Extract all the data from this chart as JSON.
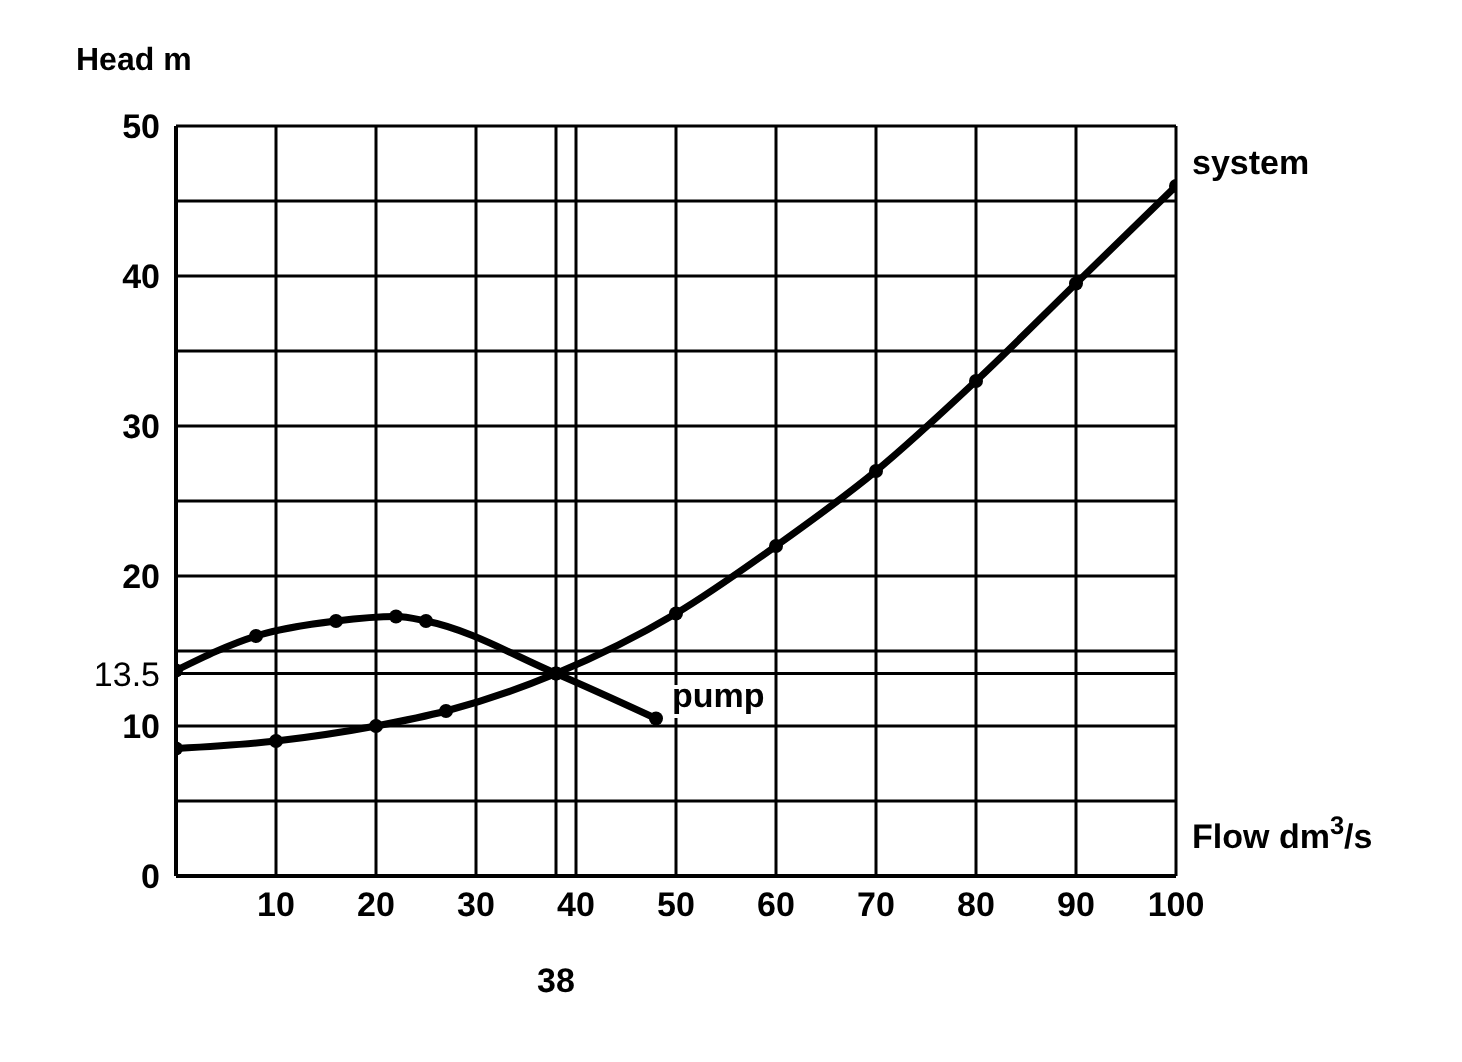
{
  "chart_data": {
    "type": "line",
    "xlabel": "Flow dm$^{3}$/s",
    "ylabel": "Head m",
    "series": [
      {
        "name": "system",
        "color": "#000000",
        "x": [
          0,
          10,
          20,
          27,
          38,
          50,
          60,
          70,
          80,
          90,
          100
        ],
        "values": [
          8.5,
          9,
          10,
          11,
          13.5,
          17.5,
          22,
          27,
          33,
          39.5,
          46
        ]
      },
      {
        "name": "pump",
        "color": "#000000",
        "x": [
          0,
          8,
          16,
          22,
          25,
          38,
          48
        ],
        "values": [
          13.7,
          16,
          17,
          17.3,
          17,
          13.5,
          10.5
        ]
      }
    ],
    "xlim": [
      0,
      100
    ],
    "ylim": [
      0,
      50
    ],
    "xticks": [
      {
        "value": 0,
        "label": null
      },
      10,
      20,
      30,
      40,
      50,
      60,
      70,
      80,
      90,
      100
    ],
    "yticks": [
      0,
      {
        "value": 5,
        "label": null
      },
      10,
      {
        "value": 15,
        "label": null
      },
      20,
      {
        "value": 25,
        "label": null
      },
      30,
      {
        "value": 35,
        "label": null
      },
      40,
      {
        "value": 45,
        "label": null
      },
      50
    ],
    "ref_lines": [
      {
        "axis": "y",
        "value": 13.5,
        "label": "13.5",
        "color": "#000000"
      },
      {
        "axis": "x",
        "value": 38,
        "label": "38",
        "color": "#000000"
      }
    ],
    "grid": true,
    "legend": false,
    "marker": "circle",
    "line_style": "solid"
  }
}
